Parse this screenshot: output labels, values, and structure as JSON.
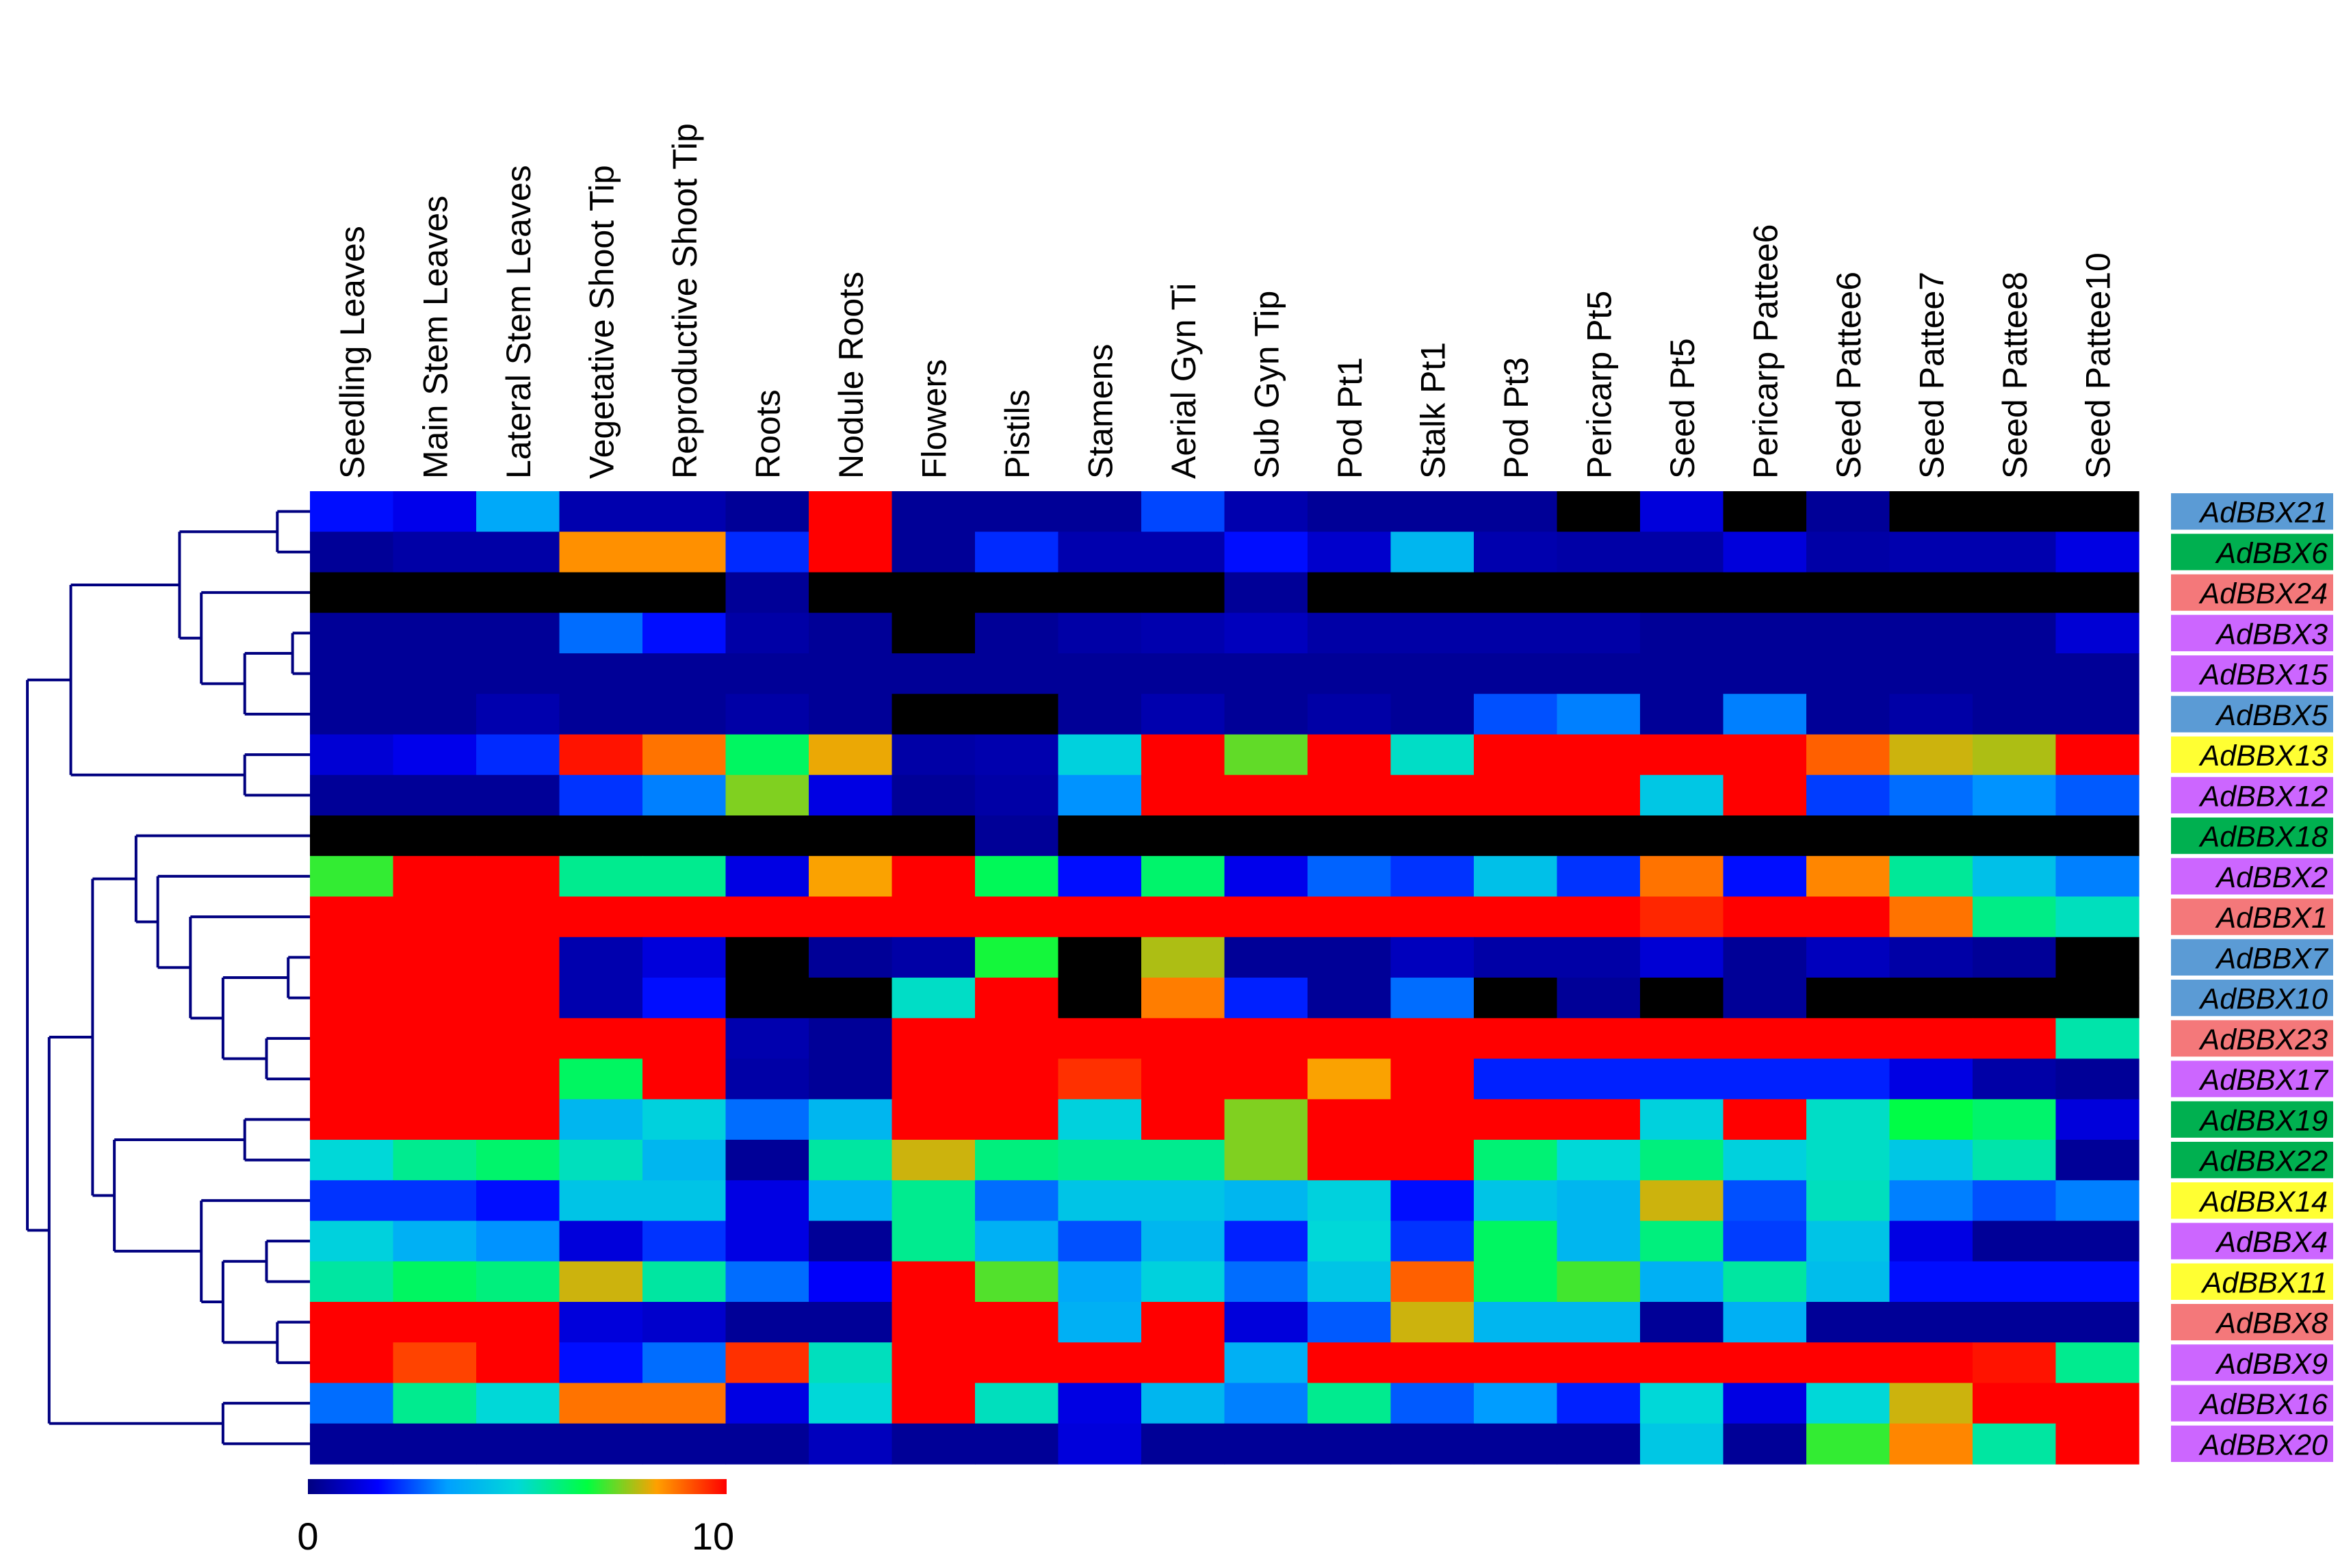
{
  "chart_data": {
    "type": "heatmap",
    "title": "",
    "columns": [
      "Seedling Leaves",
      "Main Stem Leaves",
      "Lateral Stem Leaves",
      "Vegetative Shoot Tip",
      "Reproductive Shoot Tip",
      "Roots",
      "Nodule Roots",
      "Flowers",
      "Pistils",
      "Stamens",
      "Aerial Gyn Ti",
      "Sub Gyn Tip",
      "Pod Pt1",
      "Stalk Pt1",
      "Pod Pt3",
      "Pericarp Pt5",
      "Seed Pt5",
      "Pericarp Pattee6",
      "Seed Pattee6",
      "Seed Pattee7",
      "Seed Pattee8",
      "Seed Pattee10"
    ],
    "rows": [
      "AdBBX21",
      "AdBBX6",
      "AdBBX24",
      "AdBBX3",
      "AdBBX15",
      "AdBBX5",
      "AdBBX13",
      "AdBBX12",
      "AdBBX18",
      "AdBBX2",
      "AdBBX1",
      "AdBBX7",
      "AdBBX10",
      "AdBBX23",
      "AdBBX17",
      "AdBBX19",
      "AdBBX22",
      "AdBBX14",
      "AdBBX4",
      "AdBBX11",
      "AdBBX8",
      "AdBBX9",
      "AdBBX16",
      "AdBBX20"
    ],
    "row_label_colors": [
      "#5b9bd5",
      "#00b050",
      "#f4787a",
      "#cc66ff",
      "#cc66ff",
      "#5b9bd5",
      "#ffff33",
      "#cc66ff",
      "#00b050",
      "#cc66ff",
      "#f4787a",
      "#5b9bd5",
      "#5b9bd5",
      "#f4787a",
      "#cc66ff",
      "#00b050",
      "#00b050",
      "#ffff33",
      "#cc66ff",
      "#ffff33",
      "#f4787a",
      "#cc66ff",
      "#cc66ff",
      "#cc66ff"
    ],
    "values": [
      [
        1.8,
        1.4,
        3.6,
        0.6,
        0.6,
        0.3,
        10,
        0.3,
        0.3,
        0.3,
        2.4,
        0.6,
        0.3,
        0.3,
        0.3,
        null,
        1.2,
        null,
        0.3,
        null,
        null,
        null
      ],
      [
        0.3,
        0.5,
        0.5,
        8.5,
        8.5,
        2.1,
        10,
        0.3,
        2.1,
        0.6,
        0.6,
        1.8,
        1.0,
        4.0,
        0.6,
        0.5,
        0.5,
        1.2,
        0.5,
        0.6,
        0.6,
        1.3
      ],
      [
        null,
        null,
        null,
        null,
        null,
        0.3,
        null,
        null,
        null,
        null,
        null,
        0.3,
        null,
        null,
        null,
        null,
        null,
        null,
        null,
        null,
        null,
        null
      ],
      [
        0.3,
        0.3,
        0.3,
        2.8,
        1.8,
        0.5,
        0.3,
        null,
        0.3,
        0.5,
        0.6,
        0.8,
        0.5,
        0.5,
        0.5,
        0.5,
        0.3,
        0.3,
        0.3,
        0.3,
        0.3,
        1.1
      ],
      [
        0.3,
        0.3,
        0.3,
        0.3,
        0.3,
        0.3,
        0.3,
        0.3,
        0.3,
        0.3,
        0.3,
        0.3,
        0.3,
        0.3,
        0.3,
        0.3,
        0.3,
        0.3,
        0.3,
        0.3,
        0.3,
        0.3
      ],
      [
        0.3,
        0.3,
        0.6,
        0.3,
        0.3,
        0.5,
        0.3,
        null,
        null,
        0.3,
        0.6,
        0.3,
        0.5,
        0.3,
        2.5,
        3.0,
        0.3,
        3.0,
        0.3,
        0.5,
        0.3,
        0.3
      ],
      [
        1.1,
        1.4,
        2.1,
        9.8,
        8.8,
        6.3,
        8.2,
        0.5,
        0.6,
        4.8,
        10,
        7.3,
        10,
        5.2,
        10,
        10,
        10,
        10,
        9.0,
        8.0,
        7.8,
        10
      ],
      [
        0.3,
        0.3,
        0.3,
        2.2,
        3.0,
        7.5,
        1.3,
        0.3,
        0.5,
        3.2,
        10,
        10,
        10,
        10,
        10,
        10,
        4.5,
        10,
        2.3,
        2.8,
        3.2,
        2.6
      ],
      [
        null,
        null,
        null,
        null,
        null,
        null,
        null,
        null,
        0.3,
        null,
        null,
        null,
        null,
        null,
        null,
        null,
        null,
        null,
        null,
        null,
        null,
        null
      ],
      [
        7.0,
        10,
        10,
        5.8,
        5.8,
        1.3,
        8.3,
        10,
        6.4,
        1.8,
        6.2,
        1.4,
        2.7,
        2.2,
        4.3,
        2.2,
        8.8,
        1.8,
        8.6,
        5.7,
        4.3,
        3.0
      ],
      [
        10,
        10,
        10,
        10,
        10,
        10,
        10,
        10,
        10,
        10,
        10,
        10,
        10,
        10,
        10,
        10,
        9.6,
        10,
        10,
        8.8,
        5.9,
        5.3
      ],
      [
        10,
        10,
        10,
        0.6,
        1.2,
        null,
        0.3,
        0.5,
        6.8,
        null,
        7.8,
        0.3,
        0.3,
        0.8,
        0.5,
        0.5,
        1.1,
        0.3,
        0.8,
        0.5,
        0.3,
        null
      ],
      [
        10,
        10,
        10,
        0.6,
        1.8,
        null,
        null,
        5.2,
        10,
        null,
        8.7,
        2.0,
        0.3,
        2.8,
        null,
        0.3,
        null,
        0.3,
        null,
        null,
        null,
        null
      ],
      [
        10,
        10,
        10,
        10,
        10,
        0.6,
        0.3,
        10,
        10,
        10,
        10,
        10,
        10,
        10,
        10,
        10,
        10,
        10,
        10,
        10,
        10,
        5.5
      ],
      [
        10,
        10,
        10,
        6.3,
        10,
        0.5,
        0.3,
        10,
        10,
        9.5,
        10,
        10,
        8.3,
        10,
        2.0,
        2.0,
        2.0,
        2.0,
        2.0,
        1.3,
        0.5,
        0.3
      ],
      [
        10,
        10,
        10,
        4.0,
        4.8,
        2.8,
        4.0,
        10,
        10,
        4.8,
        10,
        7.5,
        10,
        10,
        10,
        10,
        4.8,
        10,
        5.2,
        6.6,
        6.2,
        1.2
      ],
      [
        5.0,
        5.8,
        6.2,
        5.3,
        4.0,
        0.3,
        5.6,
        8.0,
        6.0,
        5.8,
        5.8,
        7.5,
        10,
        10,
        6.1,
        5.0,
        6.0,
        4.8,
        5.2,
        4.5,
        5.5,
        0.3
      ],
      [
        2.2,
        2.2,
        1.8,
        4.4,
        4.4,
        1.3,
        3.8,
        5.8,
        2.8,
        4.4,
        4.4,
        4.0,
        4.8,
        1.8,
        4.4,
        4.0,
        8.0,
        2.5,
        5.3,
        3.0,
        2.5,
        3.0
      ],
      [
        4.8,
        3.8,
        3.2,
        1.2,
        2.2,
        1.3,
        0.3,
        5.8,
        3.8,
        2.5,
        4.0,
        2.0,
        5.0,
        2.2,
        6.3,
        4.0,
        6.0,
        2.3,
        4.4,
        1.3,
        0.3,
        0.3
      ],
      [
        5.6,
        6.3,
        6.0,
        8.0,
        5.6,
        2.8,
        1.6,
        10,
        7.2,
        3.6,
        4.8,
        2.8,
        4.4,
        9.0,
        6.3,
        7.1,
        3.8,
        5.6,
        4.2,
        1.8,
        1.8,
        1.8
      ],
      [
        10,
        10,
        10,
        1.2,
        1.0,
        0.3,
        0.3,
        10,
        10,
        3.8,
        10,
        1.2,
        2.6,
        8.0,
        4.0,
        4.0,
        0.3,
        3.8,
        0.3,
        0.3,
        0.3,
        0.3
      ],
      [
        10,
        9.3,
        10,
        1.8,
        2.8,
        9.5,
        5.3,
        10,
        10,
        10,
        10,
        3.8,
        10,
        10,
        10,
        10,
        10,
        10,
        10,
        10,
        9.8,
        5.8
      ],
      [
        2.8,
        5.8,
        5.0,
        8.8,
        8.8,
        1.3,
        5.0,
        10,
        5.3,
        1.3,
        4.0,
        3.0,
        5.8,
        2.6,
        3.3,
        2.0,
        5.0,
        1.3,
        5.0,
        8.0,
        10,
        10
      ],
      [
        0.3,
        0.3,
        0.3,
        0.3,
        0.3,
        0.3,
        0.8,
        0.3,
        0.3,
        1.2,
        0.3,
        0.3,
        0.3,
        0.3,
        0.3,
        0.3,
        4.5,
        0.3,
        7.0,
        8.6,
        5.6,
        10
      ]
    ],
    "missing_color": "#000000",
    "color_scale": {
      "min": 0,
      "max": 10,
      "min_label": "0",
      "max_label": "10",
      "colors": [
        "#000080",
        "#0000ff",
        "#00a0ff",
        "#00d8d8",
        "#00ff40",
        "#ffa000",
        "#ff0000"
      ]
    },
    "dendrogram_color": "#000080",
    "dendrogram": {
      "id": "root",
      "h": 13,
      "children": [
        {
          "id": "a",
          "h": 11,
          "children": [
            {
              "id": "a1",
              "h": 6,
              "children": [
                {
                  "id": "a1x",
                  "h": 1.5,
                  "children": [
                    {
                      "leaf": 0
                    },
                    {
                      "leaf": 1
                    }
                  ]
                },
                {
                  "id": "a1y",
                  "h": 5,
                  "children": [
                    {
                      "leaf": 2
                    },
                    {
                      "id": "a1y1",
                      "h": 3,
                      "children": [
                        {
                          "id": "a1y1a",
                          "h": 0.8,
                          "children": [
                            {
                              "leaf": 3
                            },
                            {
                              "leaf": 4
                            }
                          ]
                        },
                        {
                          "leaf": 5
                        }
                      ]
                    }
                  ]
                }
              ]
            },
            {
              "id": "a2",
              "h": 3,
              "children": [
                {
                  "leaf": 6
                },
                {
                  "leaf": 7
                }
              ]
            }
          ]
        },
        {
          "id": "b",
          "h": 12,
          "children": [
            {
              "id": "b1",
              "h": 10,
              "children": [
                {
                  "id": "b1a",
                  "h": 8,
                  "children": [
                    {
                      "leaf": 8
                    },
                    {
                      "id": "b1b",
                      "h": 7,
                      "children": [
                        {
                          "leaf": 9
                        },
                        {
                          "id": "b1c",
                          "h": 5.5,
                          "children": [
                            {
                              "leaf": 10
                            },
                            {
                              "id": "b1d",
                              "h": 4,
                              "children": [
                                {
                                  "id": "b1e",
                                  "h": 1,
                                  "children": [
                                    {
                                      "leaf": 11
                                    },
                                    {
                                      "leaf": 12
                                    }
                                  ]
                                },
                                {
                                  "id": "b1f",
                                  "h": 2,
                                  "children": [
                                    {
                                      "leaf": 13
                                    },
                                    {
                                      "leaf": 14
                                    }
                                  ]
                                }
                              ]
                            }
                          ]
                        }
                      ]
                    }
                  ]
                },
                {
                  "id": "b2",
                  "h": 9,
                  "children": [
                    {
                      "id": "b2a",
                      "h": 3,
                      "children": [
                        {
                          "leaf": 15
                        },
                        {
                          "leaf": 16
                        }
                      ]
                    },
                    {
                      "id": "b2b",
                      "h": 5,
                      "children": [
                        {
                          "leaf": 17
                        },
                        {
                          "id": "b2c",
                          "h": 4,
                          "children": [
                            {
                              "id": "b2d",
                              "h": 2,
                              "children": [
                                {
                                  "leaf": 18
                                },
                                {
                                  "leaf": 19
                                }
                              ]
                            },
                            {
                              "id": "b2e",
                              "h": 1.5,
                              "children": [
                                {
                                  "leaf": 20
                                },
                                {
                                  "leaf": 21
                                }
                              ]
                            }
                          ]
                        }
                      ]
                    }
                  ]
                }
              ]
            },
            {
              "id": "b3",
              "h": 4,
              "children": [
                {
                  "leaf": 22
                },
                {
                  "leaf": 23
                }
              ]
            }
          ]
        }
      ]
    }
  }
}
